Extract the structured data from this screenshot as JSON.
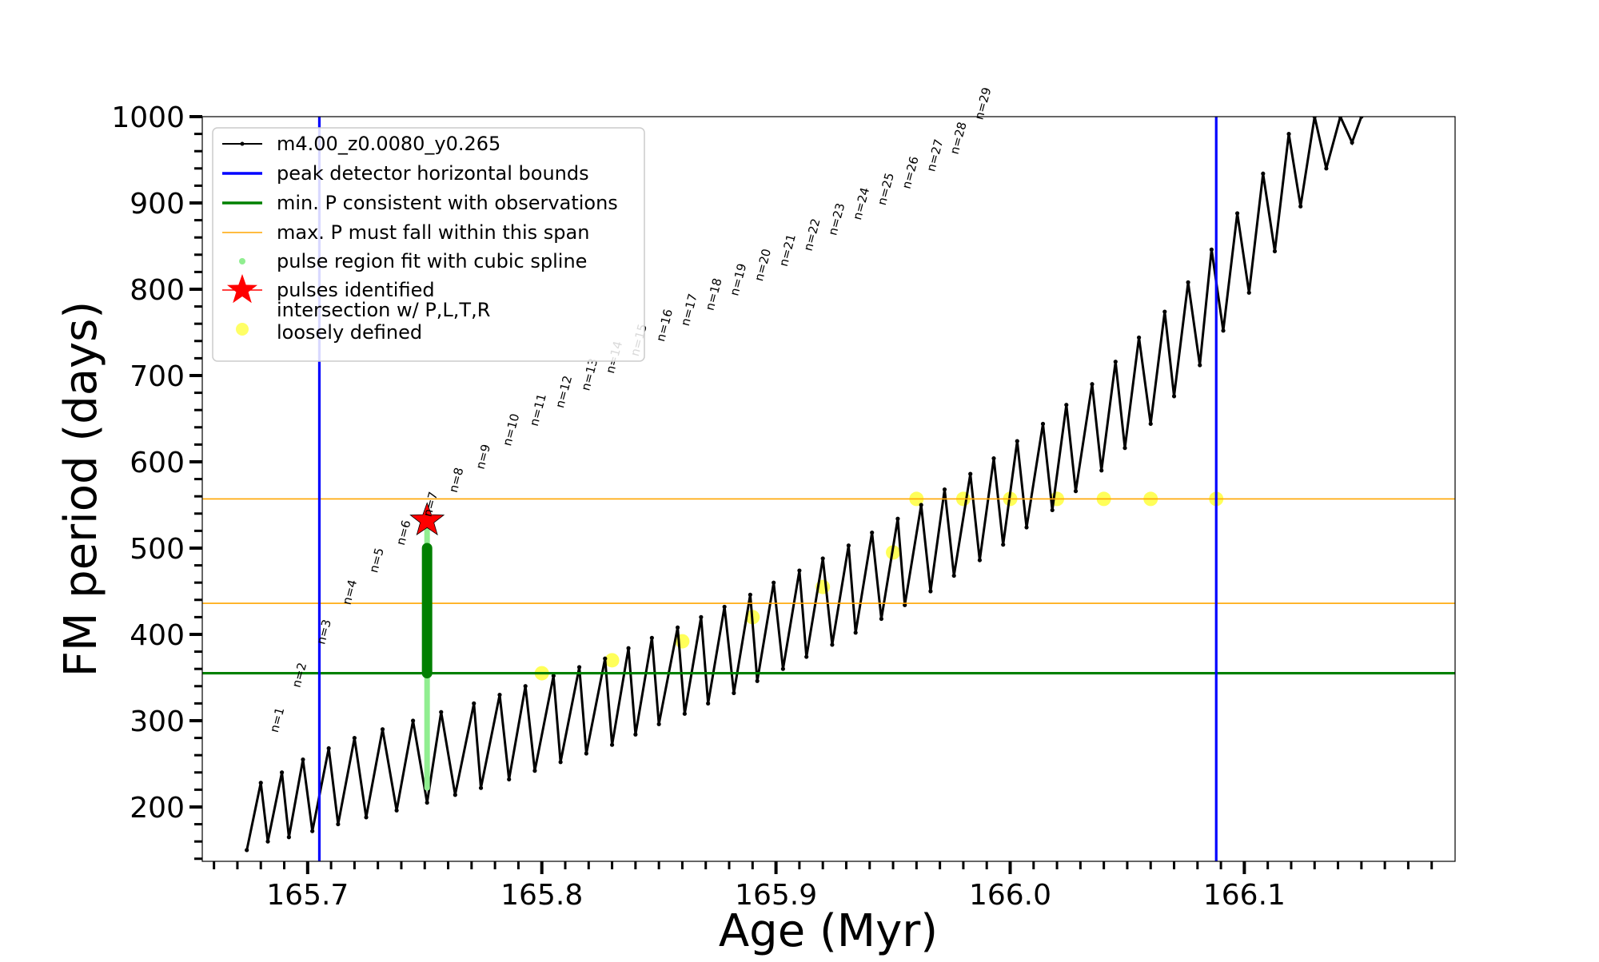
{
  "chart_data": {
    "type": "line",
    "xlabel": "Age (Myr)",
    "ylabel": "FM period (days)",
    "xlim": [
      165.655,
      166.19
    ],
    "ylim": [
      137,
      1000
    ],
    "xticks": [
      165.7,
      165.8,
      165.9,
      166.0,
      166.1
    ],
    "xtick_labels": [
      "165.7",
      "165.8",
      "165.9",
      "166.0",
      "166.1"
    ],
    "yticks": [
      200,
      300,
      400,
      500,
      600,
      700,
      800,
      900,
      1000
    ],
    "ytick_labels": [
      "200",
      "300",
      "400",
      "500",
      "600",
      "700",
      "800",
      "900",
      "1000"
    ],
    "grid": false,
    "legend_position": "upper-left",
    "legend": [
      {
        "label": "m4.00_z0.0080_y0.265",
        "kind": "line-marker",
        "color": "#000000"
      },
      {
        "label": "peak detector horizontal bounds",
        "kind": "line",
        "color": "#0000ff"
      },
      {
        "label": "min. P consistent with observations",
        "kind": "line",
        "color": "#008000"
      },
      {
        "label": "max. P must fall within this span",
        "kind": "line",
        "color": "#ffa500"
      },
      {
        "label": "pulse region fit with cubic spline",
        "kind": "dot",
        "color": "#90ee90"
      },
      {
        "label": "pulses identified",
        "kind": "star",
        "color": "#ff0000"
      },
      {
        "label": "intersection w/ P,L,T,R\nloosely defined",
        "kind": "dot",
        "color": "#ffff00"
      }
    ],
    "vertical_bounds": [
      165.705,
      166.088
    ],
    "min_period": 355,
    "max_period_span": [
      436,
      557
    ],
    "pulse_identified": {
      "x": 165.751,
      "y": 532
    },
    "pulse_fit_x": 165.751,
    "pulse_fit_range": [
      222,
      533
    ],
    "pulse_fit_core_range": [
      355,
      500
    ],
    "pulse_labels": [
      {
        "label": "n=1",
        "x": 165.6855,
        "y": 280
      },
      {
        "label": "n=2",
        "x": 165.695,
        "y": 332
      },
      {
        "label": "n=3",
        "x": 165.7055,
        "y": 382
      },
      {
        "label": "n=4",
        "x": 165.7165,
        "y": 428
      },
      {
        "label": "n=5",
        "x": 165.728,
        "y": 465
      },
      {
        "label": "n=6",
        "x": 165.7395,
        "y": 497
      },
      {
        "label": "n=7",
        "x": 165.751,
        "y": 530
      },
      {
        "label": "n=8",
        "x": 165.762,
        "y": 558
      },
      {
        "label": "n=9",
        "x": 165.7735,
        "y": 585
      },
      {
        "label": "n=10",
        "x": 165.785,
        "y": 612
      },
      {
        "label": "n=11",
        "x": 165.7965,
        "y": 635
      },
      {
        "label": "n=12",
        "x": 165.8075,
        "y": 656
      },
      {
        "label": "n=13",
        "x": 165.8185,
        "y": 676
      },
      {
        "label": "n=14",
        "x": 165.829,
        "y": 696
      },
      {
        "label": "n=15",
        "x": 165.8395,
        "y": 716
      },
      {
        "label": "n=16",
        "x": 165.8505,
        "y": 733
      },
      {
        "label": "n=17",
        "x": 165.861,
        "y": 751
      },
      {
        "label": "n=18",
        "x": 165.8715,
        "y": 769
      },
      {
        "label": "n=19",
        "x": 165.882,
        "y": 786
      },
      {
        "label": "n=20",
        "x": 165.8925,
        "y": 803
      },
      {
        "label": "n=21",
        "x": 165.903,
        "y": 820
      },
      {
        "label": "n=22",
        "x": 165.9135,
        "y": 838
      },
      {
        "label": "n=23",
        "x": 165.924,
        "y": 856
      },
      {
        "label": "n=24",
        "x": 165.9345,
        "y": 874
      },
      {
        "label": "n=25",
        "x": 165.945,
        "y": 891
      },
      {
        "label": "n=26",
        "x": 165.9555,
        "y": 910
      },
      {
        "label": "n=27",
        "x": 165.966,
        "y": 930
      },
      {
        "label": "n=28",
        "x": 165.976,
        "y": 950
      },
      {
        "label": "n=29",
        "x": 165.9865,
        "y": 990
      }
    ],
    "series": [
      {
        "style": "black line with small markers",
        "x": [
          165.674,
          165.68,
          165.683,
          165.689,
          165.692,
          165.698,
          165.702,
          165.709,
          165.713,
          165.72,
          165.725,
          165.732,
          165.738,
          165.745,
          165.751,
          165.757,
          165.763,
          165.771,
          165.774,
          165.782,
          165.786,
          165.793,
          165.797,
          165.805,
          165.808,
          165.816,
          165.819,
          165.827,
          165.83,
          165.837,
          165.84,
          165.847,
          165.85,
          165.858,
          165.861,
          165.868,
          165.871,
          165.878,
          165.882,
          165.889,
          165.892,
          165.899,
          165.903,
          165.91,
          165.913,
          165.92,
          165.924,
          165.931,
          165.934,
          165.941,
          165.945,
          165.952,
          165.955,
          165.962,
          165.966,
          165.972,
          165.976,
          165.983,
          165.987,
          165.993,
          165.997,
          166.003,
          166.007,
          166.014,
          166.018,
          166.024,
          166.028,
          166.035,
          166.039,
          166.045,
          166.049,
          166.055,
          166.06,
          166.066,
          166.07,
          166.076,
          166.081,
          166.086,
          166.091,
          166.097,
          166.102,
          166.108,
          166.113,
          166.119,
          166.124,
          166.13,
          166.135,
          166.141,
          166.146,
          166.15
        ],
        "y": [
          150,
          228,
          160,
          240,
          165,
          255,
          172,
          268,
          180,
          280,
          188,
          290,
          196,
          300,
          205,
          310,
          214,
          320,
          222,
          330,
          232,
          340,
          242,
          352,
          252,
          362,
          262,
          372,
          272,
          384,
          284,
          396,
          296,
          408,
          308,
          420,
          320,
          432,
          332,
          446,
          346,
          460,
          360,
          474,
          374,
          488,
          388,
          503,
          402,
          518,
          418,
          534,
          434,
          550,
          450,
          568,
          468,
          586,
          486,
          604,
          504,
          624,
          524,
          644,
          544,
          666,
          566,
          690,
          590,
          716,
          616,
          744,
          644,
          774,
          676,
          808,
          712,
          846,
          752,
          888,
          796,
          934,
          844,
          980,
          896,
          1000,
          940,
          1000,
          970,
          1000
        ]
      },
      {
        "style": "yellow loosely-defined intersection points",
        "x": [
          165.8,
          165.83,
          165.86,
          165.89,
          165.92,
          165.95,
          165.96,
          165.98,
          166.0,
          166.02,
          166.04,
          166.06,
          166.088
        ],
        "y": [
          355,
          370,
          392,
          420,
          455,
          495,
          557,
          557,
          557,
          557,
          557,
          557,
          557
        ]
      }
    ]
  }
}
